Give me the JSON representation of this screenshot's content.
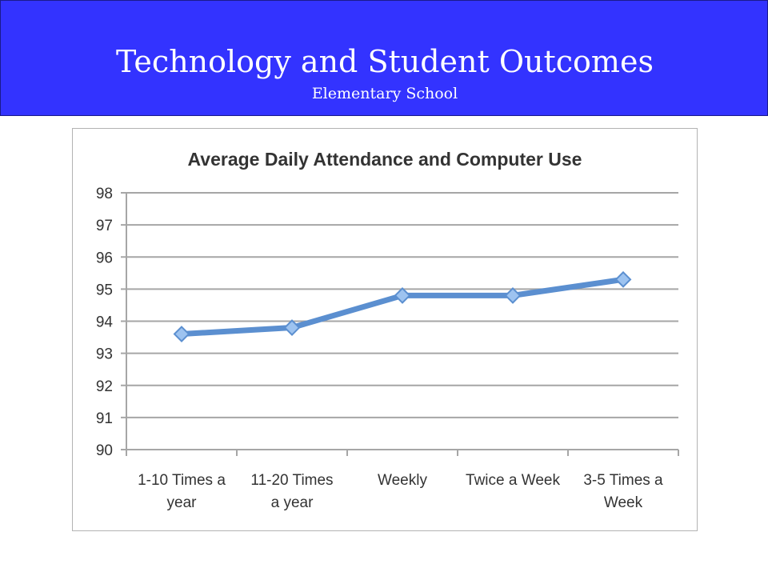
{
  "slide": {
    "title": "Technology and Student Outcomes",
    "subtitle": "Elementary School",
    "banner_color": "#3333ff"
  },
  "chart_data": {
    "type": "line",
    "title": "Average Daily Attendance and Computer Use",
    "categories": [
      [
        "1-10 Times a",
        "year"
      ],
      [
        "11-20 Times",
        "a year"
      ],
      [
        "Weekly"
      ],
      [
        "Twice a Week"
      ],
      [
        "3-5 Times a",
        "Week"
      ]
    ],
    "values": [
      93.6,
      93.8,
      94.8,
      94.8,
      95.3
    ],
    "ylim": [
      90,
      98
    ],
    "yticks": [
      "90",
      "91",
      "92",
      "93",
      "94",
      "95",
      "96",
      "97",
      "98"
    ],
    "grid": true,
    "legend": "none",
    "line_color": "#5b8fd0",
    "marker_color": "#9dc3f0",
    "marker": "diamond"
  }
}
